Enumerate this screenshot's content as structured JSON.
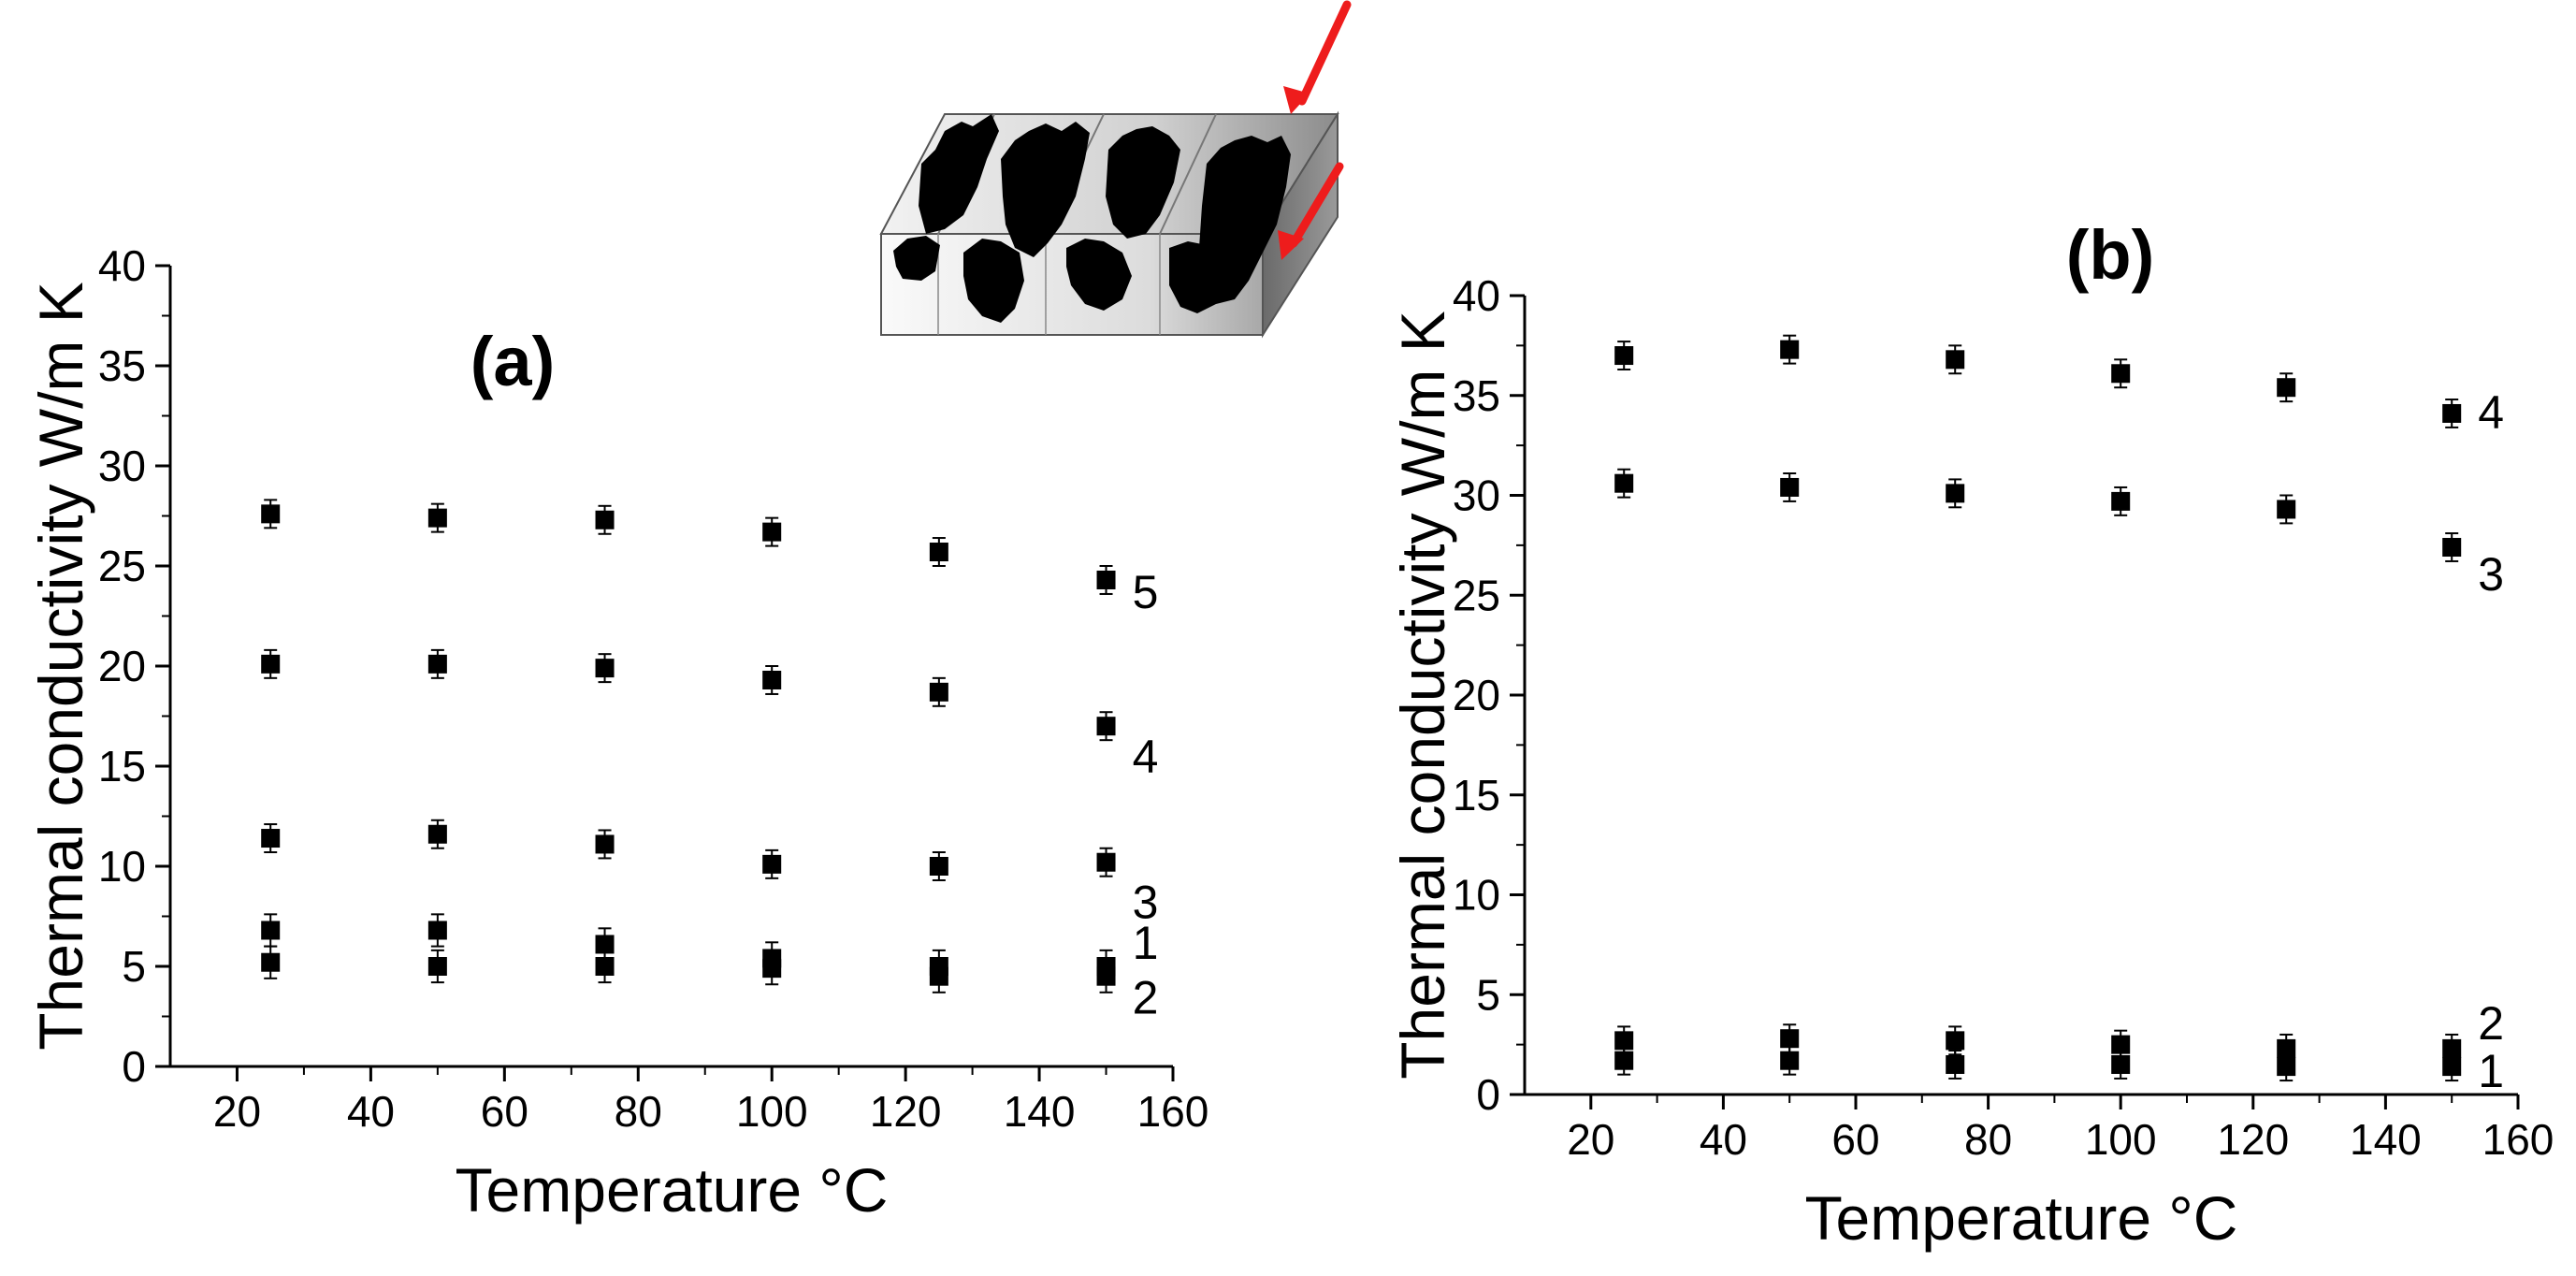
{
  "chart_data": [
    {
      "type": "scatter",
      "panel_label": "(a)",
      "xlabel": "Temperature °C",
      "ylabel": "Thermal conductivity W/m K",
      "xlim": [
        10,
        160
      ],
      "ylim": [
        0,
        40
      ],
      "x_ticks": [
        20,
        40,
        60,
        80,
        100,
        120,
        140,
        160
      ],
      "y_ticks": [
        0,
        5,
        10,
        15,
        20,
        25,
        30,
        35,
        40
      ],
      "grid": false,
      "marker": "square",
      "color": "#000000",
      "x": [
        25,
        50,
        75,
        100,
        125,
        150
      ],
      "series": [
        {
          "name": "5",
          "values": [
            27.6,
            27.4,
            27.3,
            26.7,
            25.7,
            24.3
          ],
          "error": [
            0.7,
            0.7,
            0.7,
            0.7,
            0.7,
            0.7
          ]
        },
        {
          "name": "4",
          "values": [
            20.1,
            20.1,
            19.9,
            19.3,
            18.7,
            17.0
          ],
          "error": [
            0.7,
            0.7,
            0.7,
            0.7,
            0.7,
            0.7
          ]
        },
        {
          "name": "3",
          "values": [
            11.4,
            11.6,
            11.1,
            10.1,
            10.0,
            10.2
          ],
          "error": [
            0.7,
            0.7,
            0.7,
            0.7,
            0.7,
            0.7
          ]
        },
        {
          "name": "1",
          "values": [
            6.8,
            6.8,
            6.1,
            5.4,
            5.0,
            5.0
          ],
          "error": [
            0.8,
            0.8,
            0.8,
            0.8,
            0.8,
            0.8
          ]
        },
        {
          "name": "2",
          "values": [
            5.2,
            5.0,
            5.0,
            4.9,
            4.5,
            4.5
          ],
          "error": [
            0.8,
            0.8,
            0.8,
            0.8,
            0.8,
            0.8
          ]
        }
      ]
    },
    {
      "type": "scatter",
      "panel_label": "(b)",
      "xlabel": "Temperature °C",
      "ylabel": "Thermal conductivity W/m K",
      "xlim": [
        10,
        160
      ],
      "ylim": [
        0,
        40
      ],
      "x_ticks": [
        20,
        40,
        60,
        80,
        100,
        120,
        140,
        160
      ],
      "y_ticks": [
        0,
        5,
        10,
        15,
        20,
        25,
        30,
        35,
        40
      ],
      "grid": false,
      "marker": "square",
      "color": "#000000",
      "x": [
        25,
        50,
        75,
        100,
        125,
        150
      ],
      "series": [
        {
          "name": "4",
          "values": [
            37.0,
            37.3,
            36.8,
            36.1,
            35.4,
            34.1
          ],
          "error": [
            0.7,
            0.7,
            0.7,
            0.7,
            0.7,
            0.7
          ]
        },
        {
          "name": "3",
          "values": [
            30.6,
            30.4,
            30.1,
            29.7,
            29.3,
            27.4
          ],
          "error": [
            0.7,
            0.7,
            0.7,
            0.7,
            0.7,
            0.7
          ]
        },
        {
          "name": "2",
          "values": [
            2.7,
            2.8,
            2.7,
            2.5,
            2.3,
            2.3
          ],
          "error": [
            0.7,
            0.7,
            0.7,
            0.7,
            0.7,
            0.7
          ]
        },
        {
          "name": "1",
          "values": [
            1.7,
            1.7,
            1.5,
            1.5,
            1.4,
            1.4
          ],
          "error": [
            0.7,
            0.7,
            0.7,
            0.7,
            0.7,
            0.7
          ]
        }
      ]
    }
  ],
  "inset": {
    "icon": "fiber-block-schematic-icon",
    "arrow_color": "#ee1c1c"
  }
}
